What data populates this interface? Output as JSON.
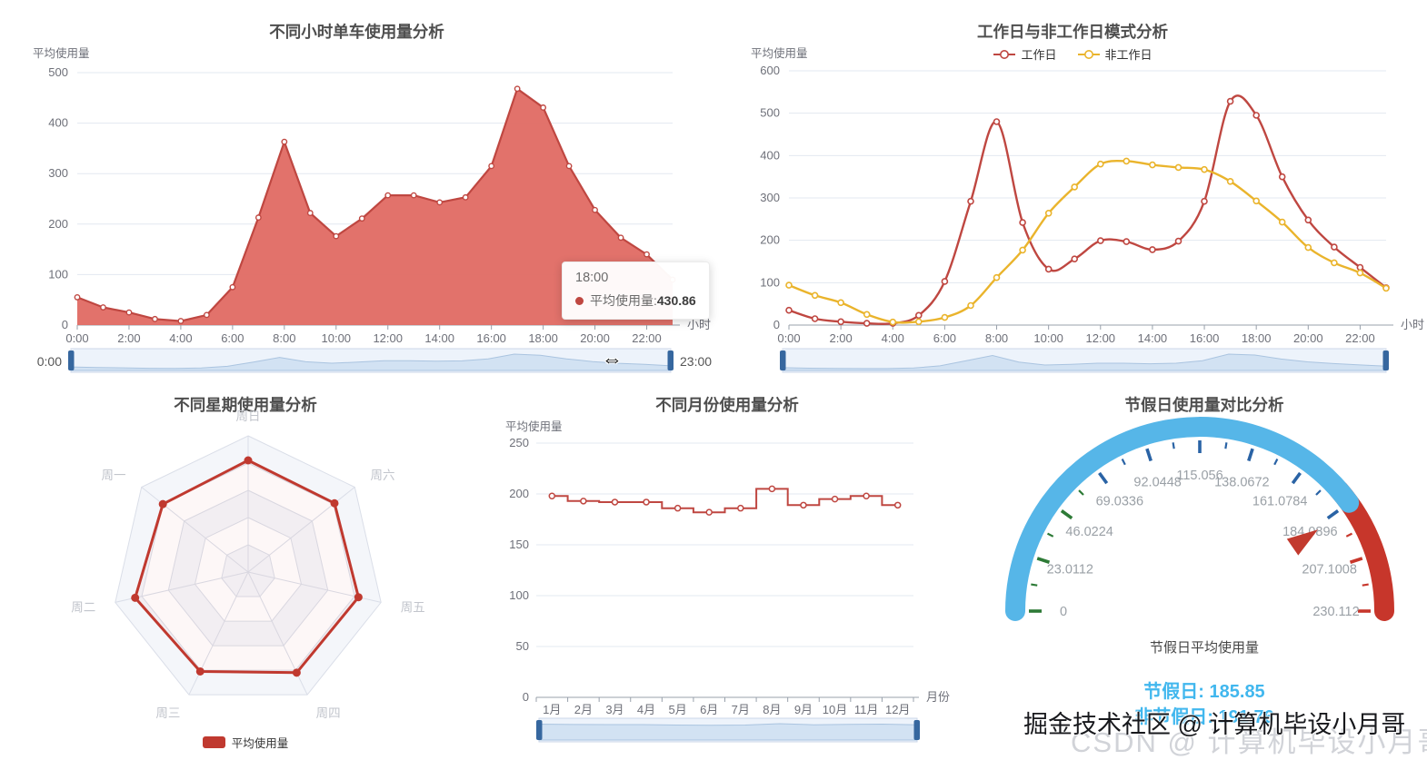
{
  "watermark": {
    "juejin": "掘金技术社区 @ 计算机毕设小月哥",
    "csdn": "CSDN @ 计算机毕设小月哥"
  },
  "cursor_icon": "⇔",
  "chart_data": [
    {
      "id": "hourly-usage",
      "type": "area",
      "title": "不同小时单车使用量分析",
      "ylabel": "平均使用量",
      "xlabel": "小时",
      "ylim": [
        0,
        500
      ],
      "yticks": [
        0,
        100,
        200,
        300,
        400,
        500
      ],
      "x": [
        "0:00",
        "1:00",
        "2:00",
        "3:00",
        "4:00",
        "5:00",
        "6:00",
        "7:00",
        "8:00",
        "9:00",
        "10:00",
        "11:00",
        "12:00",
        "13:00",
        "14:00",
        "15:00",
        "16:00",
        "17:00",
        "18:00",
        "19:00",
        "20:00",
        "21:00",
        "22:00",
        "23:00"
      ],
      "values": [
        55,
        35,
        25,
        12,
        8,
        20,
        75,
        213,
        363,
        222,
        176,
        211,
        257,
        257,
        243,
        253,
        315,
        468,
        430.86,
        315,
        228,
        173,
        140,
        90
      ],
      "line_color": "#bf4741",
      "area_color": "rgba(224,106,99,0.95)",
      "grid": true,
      "tooltip": {
        "header": "18:00",
        "label": "平均使用量: ",
        "value": "430.86"
      },
      "datazoom": {
        "start_label": "0:00",
        "end_label": "23:00"
      }
    },
    {
      "id": "workday-pattern",
      "type": "line",
      "title": "工作日与非工作日模式分析",
      "ylabel": "平均使用量",
      "xlabel": "小时",
      "ylim": [
        0,
        600
      ],
      "yticks": [
        0,
        100,
        200,
        300,
        400,
        500,
        600
      ],
      "smooth": true,
      "legend_position": "top",
      "x": [
        "0:00",
        "1:00",
        "2:00",
        "3:00",
        "4:00",
        "5:00",
        "6:00",
        "7:00",
        "8:00",
        "9:00",
        "10:00",
        "11:00",
        "12:00",
        "13:00",
        "14:00",
        "15:00",
        "16:00",
        "17:00",
        "18:00",
        "19:00",
        "20:00",
        "21:00",
        "22:00",
        "23:00"
      ],
      "series": [
        {
          "name": "工作日",
          "color": "#bf4741",
          "values": [
            35,
            15,
            8,
            4,
            4,
            23,
            103,
            292,
            480,
            242,
            132,
            156,
            199,
            197,
            178,
            198,
            292,
            528,
            495,
            350,
            248,
            184,
            136,
            88
          ]
        },
        {
          "name": "非工作日",
          "color": "#eab42c",
          "values": [
            94,
            70,
            53,
            25,
            7,
            8,
            18,
            46,
            112,
            177,
            264,
            326,
            380,
            387,
            378,
            372,
            367,
            339,
            293,
            243,
            183,
            147,
            123,
            87
          ]
        }
      ],
      "has_datazoom": true
    },
    {
      "id": "weekday-usage",
      "type": "radar",
      "title": "不同星期使用量分析",
      "indicators_clockwise_from_top": [
        "周日",
        "周六",
        "周五",
        "周四",
        "周三",
        "周二",
        "周一"
      ],
      "series_name": "平均使用量",
      "values_fraction_of_max": [
        0.82,
        0.81,
        0.83,
        0.82,
        0.81,
        0.85,
        0.8
      ],
      "levels": 5,
      "color": "#c0392f"
    },
    {
      "id": "monthly-usage",
      "type": "line-step",
      "title": "不同月份使用量分析",
      "ylabel": "平均使用量",
      "xlabel": "月份",
      "ylim": [
        0,
        250
      ],
      "yticks": [
        0,
        50,
        100,
        150,
        200,
        250
      ],
      "categories": [
        "1月",
        "2月",
        "3月",
        "4月",
        "5月",
        "6月",
        "7月",
        "8月",
        "9月",
        "10月",
        "11月",
        "12月"
      ],
      "values": [
        198,
        193,
        192,
        192,
        186,
        182,
        186,
        205,
        189,
        195,
        198,
        189
      ],
      "line_color": "#bf4741",
      "has_datazoom": true
    },
    {
      "id": "holiday-gauge",
      "type": "gauge",
      "title": "节假日使用量对比分析",
      "min": 0,
      "max": 230.112,
      "scale_labels": [
        "0",
        "23.0112",
        "46.0224",
        "69.0336",
        "92.0448",
        "115.056",
        "138.0672",
        "161.0784",
        "184.0896",
        "207.1008",
        "230.112"
      ],
      "pointer_value": 185.85,
      "holiday_avg": 185.85,
      "non_holiday_avg": 191.76,
      "detail_label": "节假日平均使用量",
      "holiday_text": "节假日: 185.85",
      "non_holiday_text": "非节假日: 191.76",
      "split_fraction": 0.8,
      "colors": {
        "arc_main": "#56b6e8",
        "arc_high": "#c7362b",
        "tick_low": "#2d7a36",
        "tick_mid": "#2a63a5",
        "tick_high": "#c7362b",
        "value_text": "#41b7ee"
      }
    }
  ]
}
